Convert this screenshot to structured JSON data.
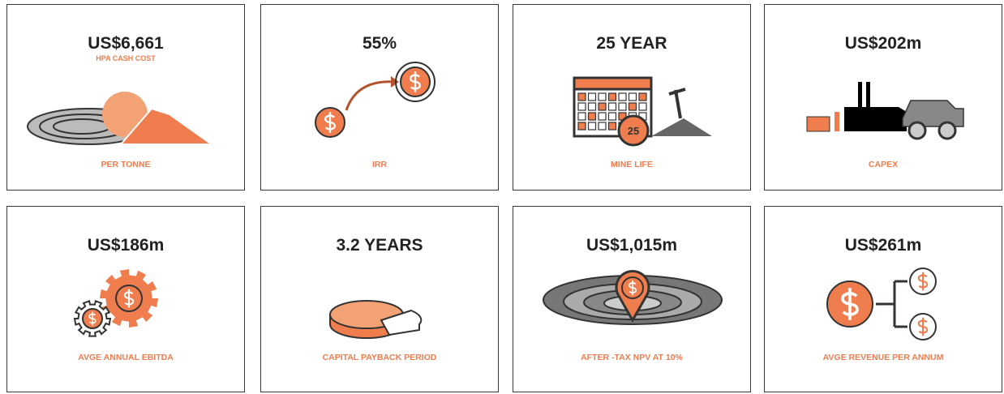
{
  "cards": [
    {
      "value": "US$6,661",
      "subtitle": "HPA CASH COST",
      "label": "PER TONNE"
    },
    {
      "value": "55%",
      "label": "IRR"
    },
    {
      "value": "25 YEAR",
      "label": "MINE LIFE",
      "badge": "25"
    },
    {
      "value": "US$202m",
      "label": "CAPEX"
    },
    {
      "value": "US$186m",
      "label": "AVGE ANNUAL EBITDA"
    },
    {
      "value": "3.2 YEARS",
      "label": "CAPITAL PAYBACK PERIOD"
    },
    {
      "value": "US$1,015m",
      "label": "AFTER -TAX NPV AT 10%"
    },
    {
      "value": "US$261m",
      "label": "AVGE REVENUE  PER ANNUM"
    }
  ]
}
